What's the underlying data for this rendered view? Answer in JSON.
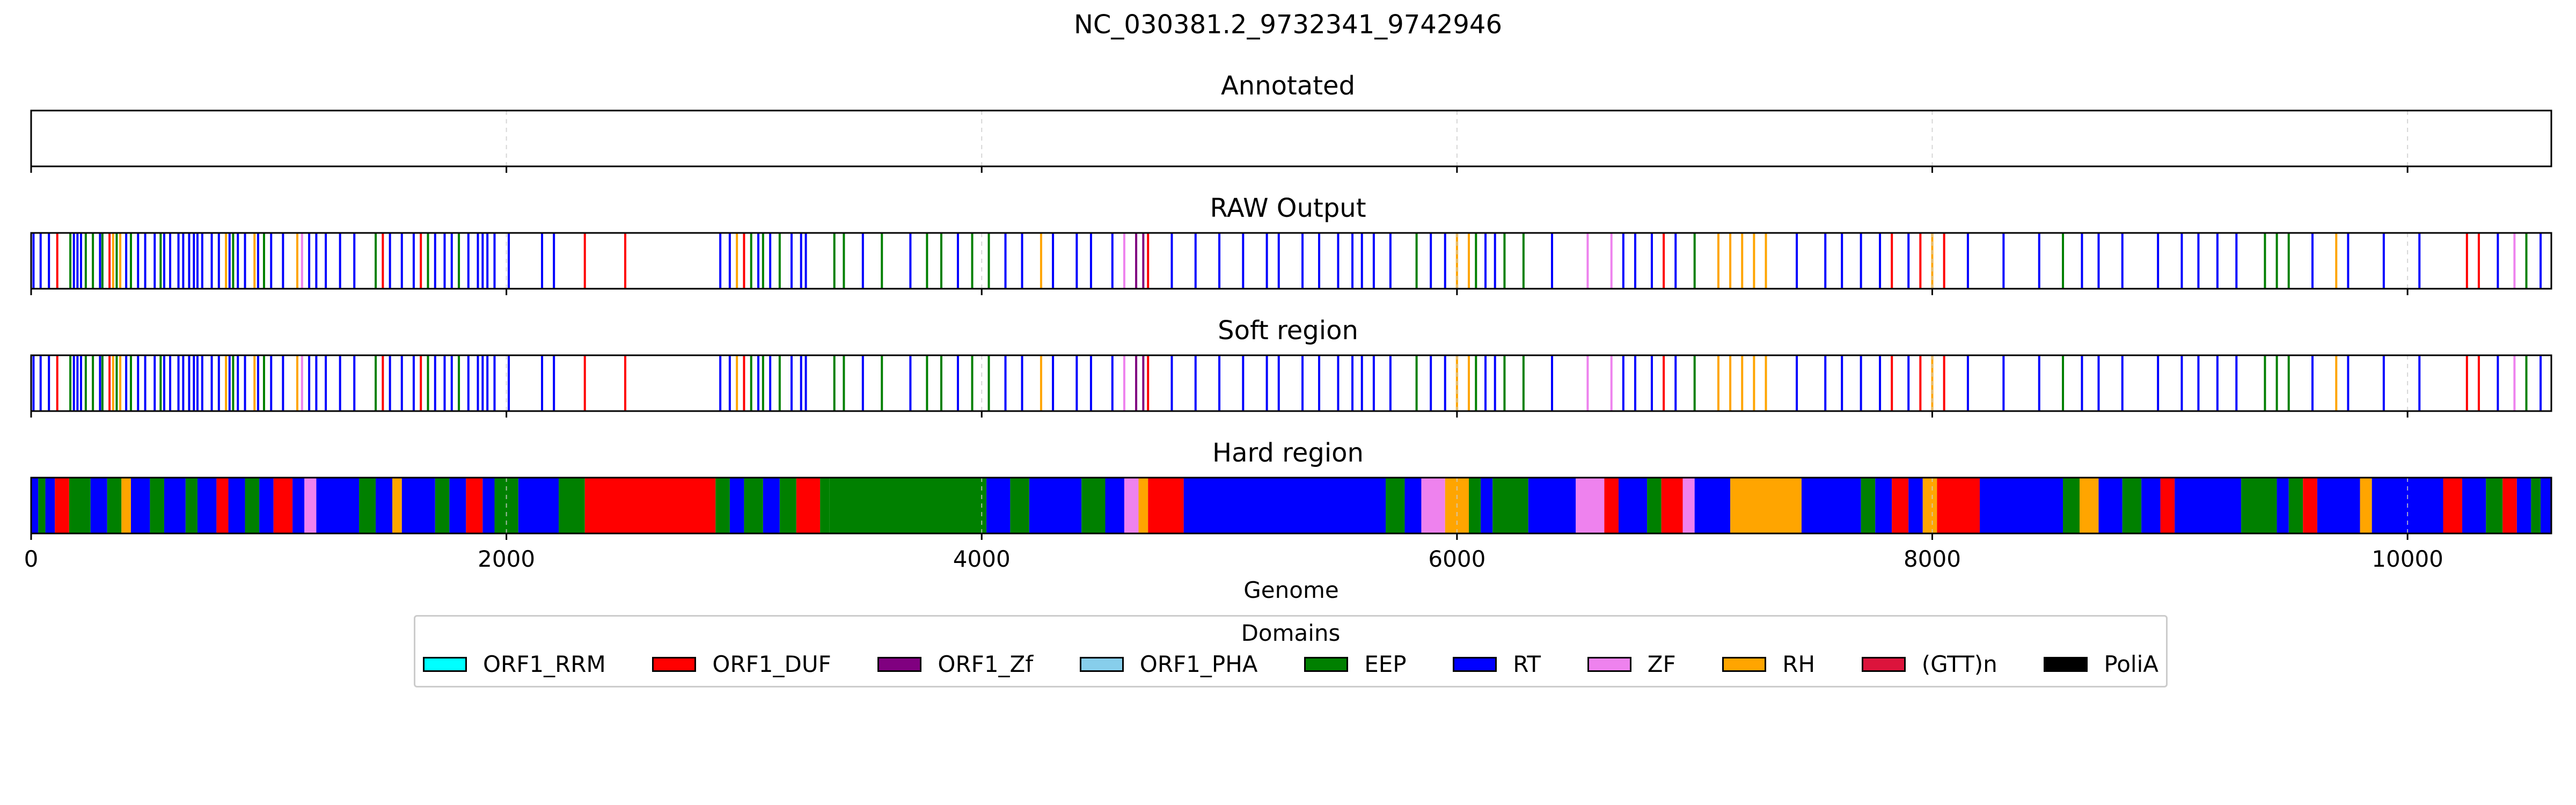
{
  "chart_data": {
    "type": "bar",
    "title": "NC_030381.2_9732341_9742946",
    "xlabel": "Genome",
    "xlim": [
      0,
      10605
    ],
    "x_ticks": [
      "0",
      "2000",
      "4000",
      "6000",
      "8000",
      "10000"
    ],
    "x_tick_values": [
      0,
      2000,
      4000,
      6000,
      8000,
      10000
    ],
    "grid": "vertical dashed at ticks",
    "legend": {
      "title": "Domains",
      "placement": "bottom-center",
      "items": [
        {
          "name": "ORF1_RRM",
          "color": "#00FFFF"
        },
        {
          "name": "ORF1_DUF",
          "color": "#FF0000"
        },
        {
          "name": "ORF1_Zf",
          "color": "#800080"
        },
        {
          "name": "ORF1_PHA",
          "color": "#87CEEB"
        },
        {
          "name": "EEP",
          "color": "#008000"
        },
        {
          "name": "RT",
          "color": "#0000FF"
        },
        {
          "name": "ZF",
          "color": "#EE82EE"
        },
        {
          "name": "RH",
          "color": "#FFA500"
        },
        {
          "name": "(GTT)n",
          "color": "#DC143C"
        },
        {
          "name": "PoliA",
          "color": "#000000"
        }
      ]
    },
    "panels": [
      {
        "title": "Annotated",
        "segments": []
      },
      {
        "title": "RAW Output",
        "mode": "lines",
        "segments": [
          [
            10,
            "RT"
          ],
          [
            40,
            "RT"
          ],
          [
            75,
            "RT"
          ],
          [
            110,
            "ORF1_DUF"
          ],
          [
            165,
            "EEP"
          ],
          [
            180,
            "RT"
          ],
          [
            195,
            "RT"
          ],
          [
            210,
            "RT"
          ],
          [
            230,
            "EEP"
          ],
          [
            260,
            "EEP"
          ],
          [
            290,
            "RT"
          ],
          [
            300,
            "EEP"
          ],
          [
            330,
            "ORF1_DUF"
          ],
          [
            345,
            "RH"
          ],
          [
            360,
            "EEP"
          ],
          [
            375,
            "RH"
          ],
          [
            400,
            "RT"
          ],
          [
            420,
            "EEP"
          ],
          [
            450,
            "RT"
          ],
          [
            480,
            "RT"
          ],
          [
            520,
            "RT"
          ],
          [
            545,
            "EEP"
          ],
          [
            560,
            "RT"
          ],
          [
            585,
            "RT"
          ],
          [
            620,
            "RT"
          ],
          [
            640,
            "RT"
          ],
          [
            665,
            "RT"
          ],
          [
            685,
            "RT"
          ],
          [
            700,
            "RT"
          ],
          [
            720,
            "RT"
          ],
          [
            760,
            "RT"
          ],
          [
            790,
            "RT"
          ],
          [
            820,
            "RH"
          ],
          [
            835,
            "RT"
          ],
          [
            850,
            "EEP"
          ],
          [
            870,
            "RT"
          ],
          [
            900,
            "RT"
          ],
          [
            940,
            "RH"
          ],
          [
            955,
            "RT"
          ],
          [
            980,
            "EEP"
          ],
          [
            1010,
            "RT"
          ],
          [
            1060,
            "RT"
          ],
          [
            1120,
            "RH"
          ],
          [
            1140,
            "ZF"
          ],
          [
            1170,
            "RT"
          ],
          [
            1200,
            "RT"
          ],
          [
            1240,
            "RT"
          ],
          [
            1300,
            "RT"
          ],
          [
            1360,
            "RT"
          ],
          [
            1450,
            "EEP"
          ],
          [
            1480,
            "ORF1_DUF"
          ],
          [
            1510,
            "RT"
          ],
          [
            1560,
            "RT"
          ],
          [
            1610,
            "RT"
          ],
          [
            1640,
            "ORF1_DUF"
          ],
          [
            1670,
            "EEP"
          ],
          [
            1700,
            "RT"
          ],
          [
            1740,
            "RT"
          ],
          [
            1770,
            "RT"
          ],
          [
            1800,
            "EEP"
          ],
          [
            1840,
            "RT"
          ],
          [
            1880,
            "RT"
          ],
          [
            1900,
            "RT"
          ],
          [
            1920,
            "RT"
          ],
          [
            1950,
            "RT"
          ],
          [
            2010,
            "RT"
          ],
          [
            2150,
            "RT"
          ],
          [
            2200,
            "RT"
          ],
          [
            2330,
            "ORF1_DUF"
          ],
          [
            2500,
            "ORF1_DUF"
          ],
          [
            2900,
            "RT"
          ],
          [
            2940,
            "RT"
          ],
          [
            2970,
            "RH"
          ],
          [
            3000,
            "ORF1_DUF"
          ],
          [
            3030,
            "EEP"
          ],
          [
            3060,
            "RT"
          ],
          [
            3080,
            "EEP"
          ],
          [
            3110,
            "RT"
          ],
          [
            3150,
            "EEP"
          ],
          [
            3200,
            "RT"
          ],
          [
            3240,
            "RT"
          ],
          [
            3260,
            "RT"
          ],
          [
            3380,
            "EEP"
          ],
          [
            3420,
            "EEP"
          ],
          [
            3500,
            "RT"
          ],
          [
            3580,
            "EEP"
          ],
          [
            3700,
            "RT"
          ],
          [
            3770,
            "EEP"
          ],
          [
            3830,
            "EEP"
          ],
          [
            3900,
            "RT"
          ],
          [
            3960,
            "EEP"
          ],
          [
            4030,
            "EEP"
          ],
          [
            4100,
            "RT"
          ],
          [
            4170,
            "RT"
          ],
          [
            4250,
            "RH"
          ],
          [
            4300,
            "RT"
          ],
          [
            4400,
            "RT"
          ],
          [
            4460,
            "RT"
          ],
          [
            4550,
            "RT"
          ],
          [
            4600,
            "ZF"
          ],
          [
            4650,
            "ORF1_Zf"
          ],
          [
            4680,
            "ORF1_Zf"
          ],
          [
            4700,
            "ORF1_DUF"
          ],
          [
            4800,
            "RT"
          ],
          [
            4900,
            "RT"
          ],
          [
            5000,
            "RT"
          ],
          [
            5100,
            "RT"
          ],
          [
            5200,
            "RT"
          ],
          [
            5250,
            "RT"
          ],
          [
            5350,
            "RT"
          ],
          [
            5420,
            "RT"
          ],
          [
            5500,
            "RT"
          ],
          [
            5560,
            "RT"
          ],
          [
            5600,
            "RT"
          ],
          [
            5650,
            "RT"
          ],
          [
            5720,
            "RT"
          ],
          [
            5830,
            "EEP"
          ],
          [
            5890,
            "RT"
          ],
          [
            5950,
            "RT"
          ],
          [
            6000,
            "RH"
          ],
          [
            6050,
            "RH"
          ],
          [
            6080,
            "EEP"
          ],
          [
            6120,
            "RT"
          ],
          [
            6160,
            "RT"
          ],
          [
            6200,
            "EEP"
          ],
          [
            6280,
            "EEP"
          ],
          [
            6400,
            "RT"
          ],
          [
            6550,
            "ZF"
          ],
          [
            6650,
            "ZF"
          ],
          [
            6700,
            "RT"
          ],
          [
            6750,
            "RT"
          ],
          [
            6820,
            "RT"
          ],
          [
            6870,
            "ORF1_DUF"
          ],
          [
            6920,
            "RT"
          ],
          [
            7000,
            "EEP"
          ],
          [
            7100,
            "RH"
          ],
          [
            7150,
            "RH"
          ],
          [
            7200,
            "RH"
          ],
          [
            7250,
            "RH"
          ],
          [
            7300,
            "RH"
          ],
          [
            7430,
            "RT"
          ],
          [
            7550,
            "RT"
          ],
          [
            7620,
            "RT"
          ],
          [
            7700,
            "RT"
          ],
          [
            7780,
            "RT"
          ],
          [
            7830,
            "ORF1_DUF"
          ],
          [
            7900,
            "RT"
          ],
          [
            7950,
            "ORF1_DUF"
          ],
          [
            8000,
            "RH"
          ],
          [
            8050,
            "ORF1_DUF"
          ],
          [
            8150,
            "RT"
          ],
          [
            8300,
            "RT"
          ],
          [
            8450,
            "RT"
          ],
          [
            8550,
            "EEP"
          ],
          [
            8630,
            "RT"
          ],
          [
            8700,
            "RT"
          ],
          [
            8800,
            "RT"
          ],
          [
            8950,
            "RT"
          ],
          [
            9050,
            "RT"
          ],
          [
            9120,
            "RT"
          ],
          [
            9200,
            "RT"
          ],
          [
            9280,
            "RT"
          ],
          [
            9400,
            "EEP"
          ],
          [
            9450,
            "EEP"
          ],
          [
            9500,
            "EEP"
          ],
          [
            9600,
            "RT"
          ],
          [
            9700,
            "RH"
          ],
          [
            9750,
            "RT"
          ],
          [
            9900,
            "RT"
          ],
          [
            10050,
            "RT"
          ],
          [
            10250,
            "ORF1_DUF"
          ],
          [
            10300,
            "ORF1_DUF"
          ],
          [
            10380,
            "RT"
          ],
          [
            10450,
            "ZF"
          ],
          [
            10500,
            "EEP"
          ],
          [
            10560,
            "RT"
          ]
        ]
      },
      {
        "title": "Soft region",
        "mode": "lines",
        "segments": "same_as_raw"
      },
      {
        "title": "Hard region",
        "mode": "blocks",
        "segments": [
          [
            0,
            30,
            "RT"
          ],
          [
            30,
            60,
            "EEP"
          ],
          [
            60,
            100,
            "RT"
          ],
          [
            100,
            160,
            "ORF1_DUF"
          ],
          [
            160,
            250,
            "EEP"
          ],
          [
            250,
            320,
            "RT"
          ],
          [
            320,
            380,
            "EEP"
          ],
          [
            380,
            420,
            "RH"
          ],
          [
            420,
            500,
            "RT"
          ],
          [
            500,
            560,
            "EEP"
          ],
          [
            560,
            650,
            "RT"
          ],
          [
            650,
            700,
            "EEP"
          ],
          [
            700,
            780,
            "RT"
          ],
          [
            780,
            830,
            "ORF1_DUF"
          ],
          [
            830,
            900,
            "RT"
          ],
          [
            900,
            960,
            "EEP"
          ],
          [
            960,
            1020,
            "RT"
          ],
          [
            1020,
            1100,
            "ORF1_DUF"
          ],
          [
            1100,
            1150,
            "RT"
          ],
          [
            1150,
            1200,
            "ZF"
          ],
          [
            1200,
            1380,
            "RT"
          ],
          [
            1380,
            1450,
            "EEP"
          ],
          [
            1450,
            1520,
            "RT"
          ],
          [
            1520,
            1560,
            "RH"
          ],
          [
            1560,
            1700,
            "RT"
          ],
          [
            1700,
            1760,
            "EEP"
          ],
          [
            1760,
            1830,
            "RT"
          ],
          [
            1830,
            1900,
            "ORF1_DUF"
          ],
          [
            1900,
            1950,
            "RT"
          ],
          [
            1950,
            2050,
            "EEP"
          ],
          [
            2050,
            2220,
            "RT"
          ],
          [
            2220,
            2330,
            "EEP"
          ],
          [
            2330,
            2880,
            "ORF1_DUF"
          ],
          [
            2880,
            2940,
            "EEP"
          ],
          [
            2940,
            3000,
            "RT"
          ],
          [
            3000,
            3080,
            "EEP"
          ],
          [
            3080,
            3150,
            "RT"
          ],
          [
            3150,
            3220,
            "EEP"
          ],
          [
            3220,
            3320,
            "ORF1_DUF"
          ],
          [
            3320,
            3360,
            "EEP"
          ],
          [
            3360,
            4020,
            "EEP"
          ],
          [
            4020,
            4120,
            "RT"
          ],
          [
            4120,
            4200,
            "EEP"
          ],
          [
            4200,
            4420,
            "RT"
          ],
          [
            4420,
            4520,
            "EEP"
          ],
          [
            4520,
            4600,
            "RT"
          ],
          [
            4600,
            4660,
            "ZF"
          ],
          [
            4660,
            4700,
            "RH"
          ],
          [
            4700,
            4850,
            "ORF1_DUF"
          ],
          [
            4850,
            5700,
            "RT"
          ],
          [
            5700,
            5780,
            "EEP"
          ],
          [
            5780,
            5850,
            "RT"
          ],
          [
            5850,
            5950,
            "ZF"
          ],
          [
            5950,
            6050,
            "RH"
          ],
          [
            6050,
            6100,
            "EEP"
          ],
          [
            6100,
            6150,
            "RT"
          ],
          [
            6150,
            6300,
            "EEP"
          ],
          [
            6300,
            6500,
            "RT"
          ],
          [
            6500,
            6620,
            "ZF"
          ],
          [
            6620,
            6680,
            "ORF1_DUF"
          ],
          [
            6680,
            6800,
            "RT"
          ],
          [
            6800,
            6860,
            "EEP"
          ],
          [
            6860,
            6950,
            "ORF1_DUF"
          ],
          [
            6950,
            7000,
            "ZF"
          ],
          [
            7000,
            7150,
            "RT"
          ],
          [
            7150,
            7450,
            "RH"
          ],
          [
            7450,
            7700,
            "RT"
          ],
          [
            7700,
            7760,
            "EEP"
          ],
          [
            7760,
            7830,
            "RT"
          ],
          [
            7830,
            7900,
            "ORF1_DUF"
          ],
          [
            7900,
            7960,
            "RT"
          ],
          [
            7960,
            8020,
            "RH"
          ],
          [
            8020,
            8200,
            "ORF1_DUF"
          ],
          [
            8200,
            8550,
            "RT"
          ],
          [
            8550,
            8620,
            "EEP"
          ],
          [
            8620,
            8700,
            "RH"
          ],
          [
            8700,
            8800,
            "RT"
          ],
          [
            8800,
            8880,
            "EEP"
          ],
          [
            8880,
            8960,
            "RT"
          ],
          [
            8960,
            9020,
            "ORF1_DUF"
          ],
          [
            9020,
            9300,
            "RT"
          ],
          [
            9300,
            9450,
            "EEP"
          ],
          [
            9450,
            9500,
            "RT"
          ],
          [
            9500,
            9560,
            "EEP"
          ],
          [
            9560,
            9620,
            "ORF1_DUF"
          ],
          [
            9620,
            9800,
            "RT"
          ],
          [
            9800,
            9850,
            "RH"
          ],
          [
            9850,
            10150,
            "RT"
          ],
          [
            10150,
            10230,
            "ORF1_DUF"
          ],
          [
            10230,
            10330,
            "RT"
          ],
          [
            10330,
            10400,
            "EEP"
          ],
          [
            10400,
            10460,
            "ORF1_DUF"
          ],
          [
            10460,
            10520,
            "RT"
          ],
          [
            10520,
            10560,
            "EEP"
          ],
          [
            10560,
            10605,
            "RT"
          ]
        ]
      }
    ]
  }
}
